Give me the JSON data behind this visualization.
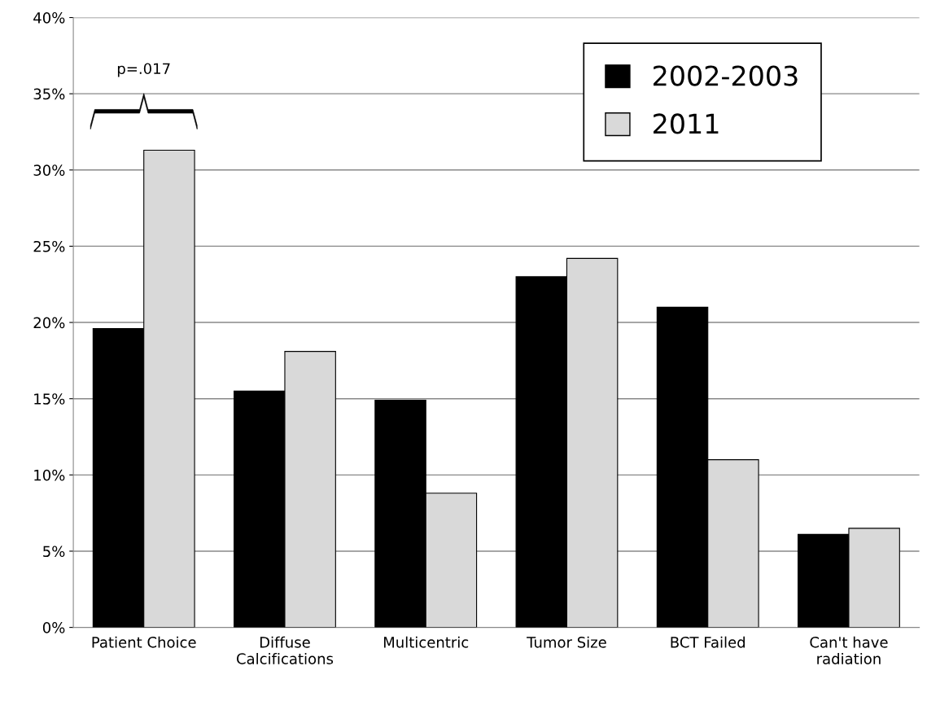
{
  "chart_data": {
    "type": "bar",
    "categories": [
      "Patient Choice",
      "Diffuse\nCalcifications",
      "Multicentric",
      "Tumor Size",
      "BCT Failed",
      "Can't have\nradiation"
    ],
    "series": [
      {
        "name": "2002-2003",
        "color": "#000000",
        "values": [
          19.6,
          15.5,
          14.9,
          23.0,
          21.0,
          6.1
        ]
      },
      {
        "name": "2011",
        "color": "#d9d9d9",
        "values": [
          31.3,
          18.1,
          8.8,
          24.2,
          11.0,
          6.5
        ]
      }
    ],
    "ylim": [
      0,
      40
    ],
    "yticks": [
      {
        "value": 0,
        "label": "0%"
      },
      {
        "value": 5,
        "label": "5%"
      },
      {
        "value": 10,
        "label": "10%"
      },
      {
        "value": 15,
        "label": "15%"
      },
      {
        "value": 20,
        "label": "20%"
      },
      {
        "value": 25,
        "label": "25%"
      },
      {
        "value": 30,
        "label": "30%"
      },
      {
        "value": 35,
        "label": "35%"
      },
      {
        "value": 40,
        "label": "40%"
      }
    ],
    "grid": "y",
    "legend": "top right",
    "annotations": [
      "p=.017"
    ]
  }
}
